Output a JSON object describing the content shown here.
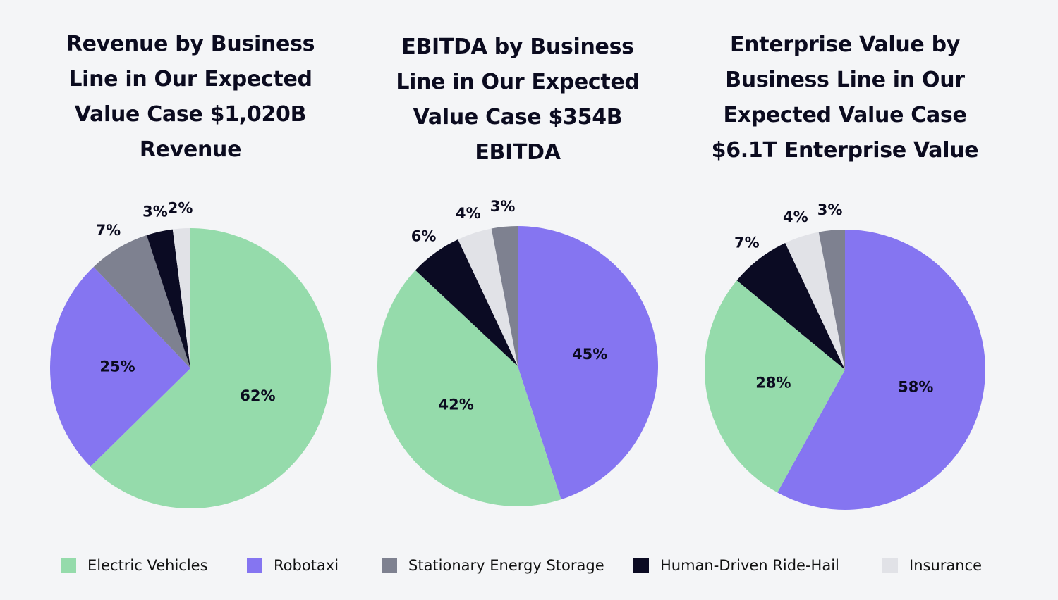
{
  "colors": {
    "Electric Vehicles": "#95dbab",
    "Robotaxi": "#8575f1",
    "Stationary Energy Storage": "#7e8190",
    "Human-Driven Ride-Hail": "#0b0b23",
    "Insurance": "#e1e2e7"
  },
  "legend": [
    "Electric Vehicles",
    "Robotaxi",
    "Stationary Energy Storage",
    "Human-Driven Ride-Hail",
    "Insurance"
  ],
  "chart_data": [
    {
      "type": "pie",
      "title_lines": [
        "Revenue by Business",
        "Line in Our Expected",
        "Value Case $1,020B",
        "Revenue"
      ],
      "slices": [
        {
          "category": "Electric Vehicles",
          "value": 62,
          "label": "62%"
        },
        {
          "category": "Robotaxi",
          "value": 25,
          "label": "25%"
        },
        {
          "category": "Stationary Energy Storage",
          "value": 7,
          "label": "7%"
        },
        {
          "category": "Human-Driven Ride-Hail",
          "value": 3,
          "label": "3%"
        },
        {
          "category": "Insurance",
          "value": 2,
          "label": "2%"
        }
      ]
    },
    {
      "type": "pie",
      "title_lines": [
        "EBITDA by Business",
        "Line in Our Expected",
        "Value Case $354B",
        "EBITDA"
      ],
      "slices": [
        {
          "category": "Robotaxi",
          "value": 45,
          "label": "45%"
        },
        {
          "category": "Electric Vehicles",
          "value": 42,
          "label": "42%"
        },
        {
          "category": "Human-Driven Ride-Hail",
          "value": 6,
          "label": "6%"
        },
        {
          "category": "Insurance",
          "value": 4,
          "label": "4%"
        },
        {
          "category": "Stationary Energy Storage",
          "value": 3,
          "label": "3%"
        }
      ]
    },
    {
      "type": "pie",
      "title_lines": [
        "Enterprise Value by",
        "Business Line in Our",
        "Expected Value Case",
        "$6.1T Enterprise Value"
      ],
      "slices": [
        {
          "category": "Robotaxi",
          "value": 58,
          "label": "58%"
        },
        {
          "category": "Electric Vehicles",
          "value": 28,
          "label": "28%"
        },
        {
          "category": "Human-Driven Ride-Hail",
          "value": 7,
          "label": "7%"
        },
        {
          "category": "Insurance",
          "value": 4,
          "label": "4%"
        },
        {
          "category": "Stationary Energy Storage",
          "value": 3,
          "label": "3%"
        }
      ]
    }
  ]
}
